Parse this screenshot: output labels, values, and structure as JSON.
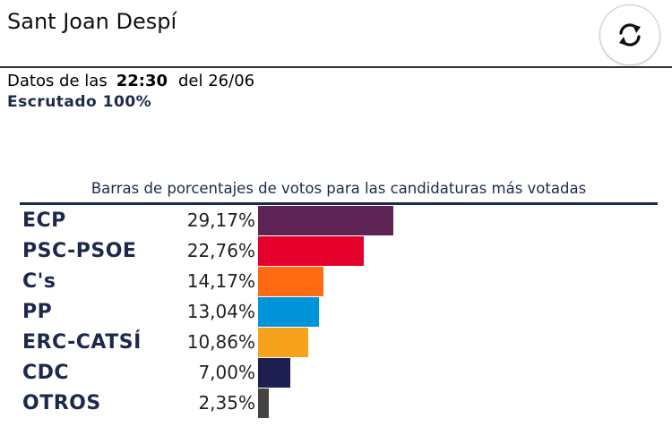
{
  "header": {
    "title": "Sant Joan Despí",
    "refresh_icon": "refresh-icon"
  },
  "info": {
    "data_label": "Datos de las",
    "time": "22:30",
    "date": "del 26/06",
    "scrutinized": "Escrutado 100%"
  },
  "chart_data": {
    "type": "bar",
    "title": "Barras de porcentajes de votos para las candidaturas más votadas",
    "categories": [
      "ECP",
      "PSC-PSOE",
      "C's",
      "PP",
      "ERC-CATSÍ",
      "CDC",
      "OTROS"
    ],
    "values": [
      29.17,
      22.76,
      14.17,
      13.04,
      10.86,
      7.0,
      2.35
    ],
    "labels": [
      "29,17%",
      "22,76%",
      "14,17%",
      "13,04%",
      "10,86%",
      "7,00%",
      "2,35%"
    ],
    "colors": [
      "#5e2456",
      "#e4002b",
      "#ff6a13",
      "#0095db",
      "#f7a21d",
      "#1c1f4f",
      "#444444"
    ],
    "orientation": "horizontal",
    "xlim": [
      0,
      100
    ],
    "grid": false
  }
}
